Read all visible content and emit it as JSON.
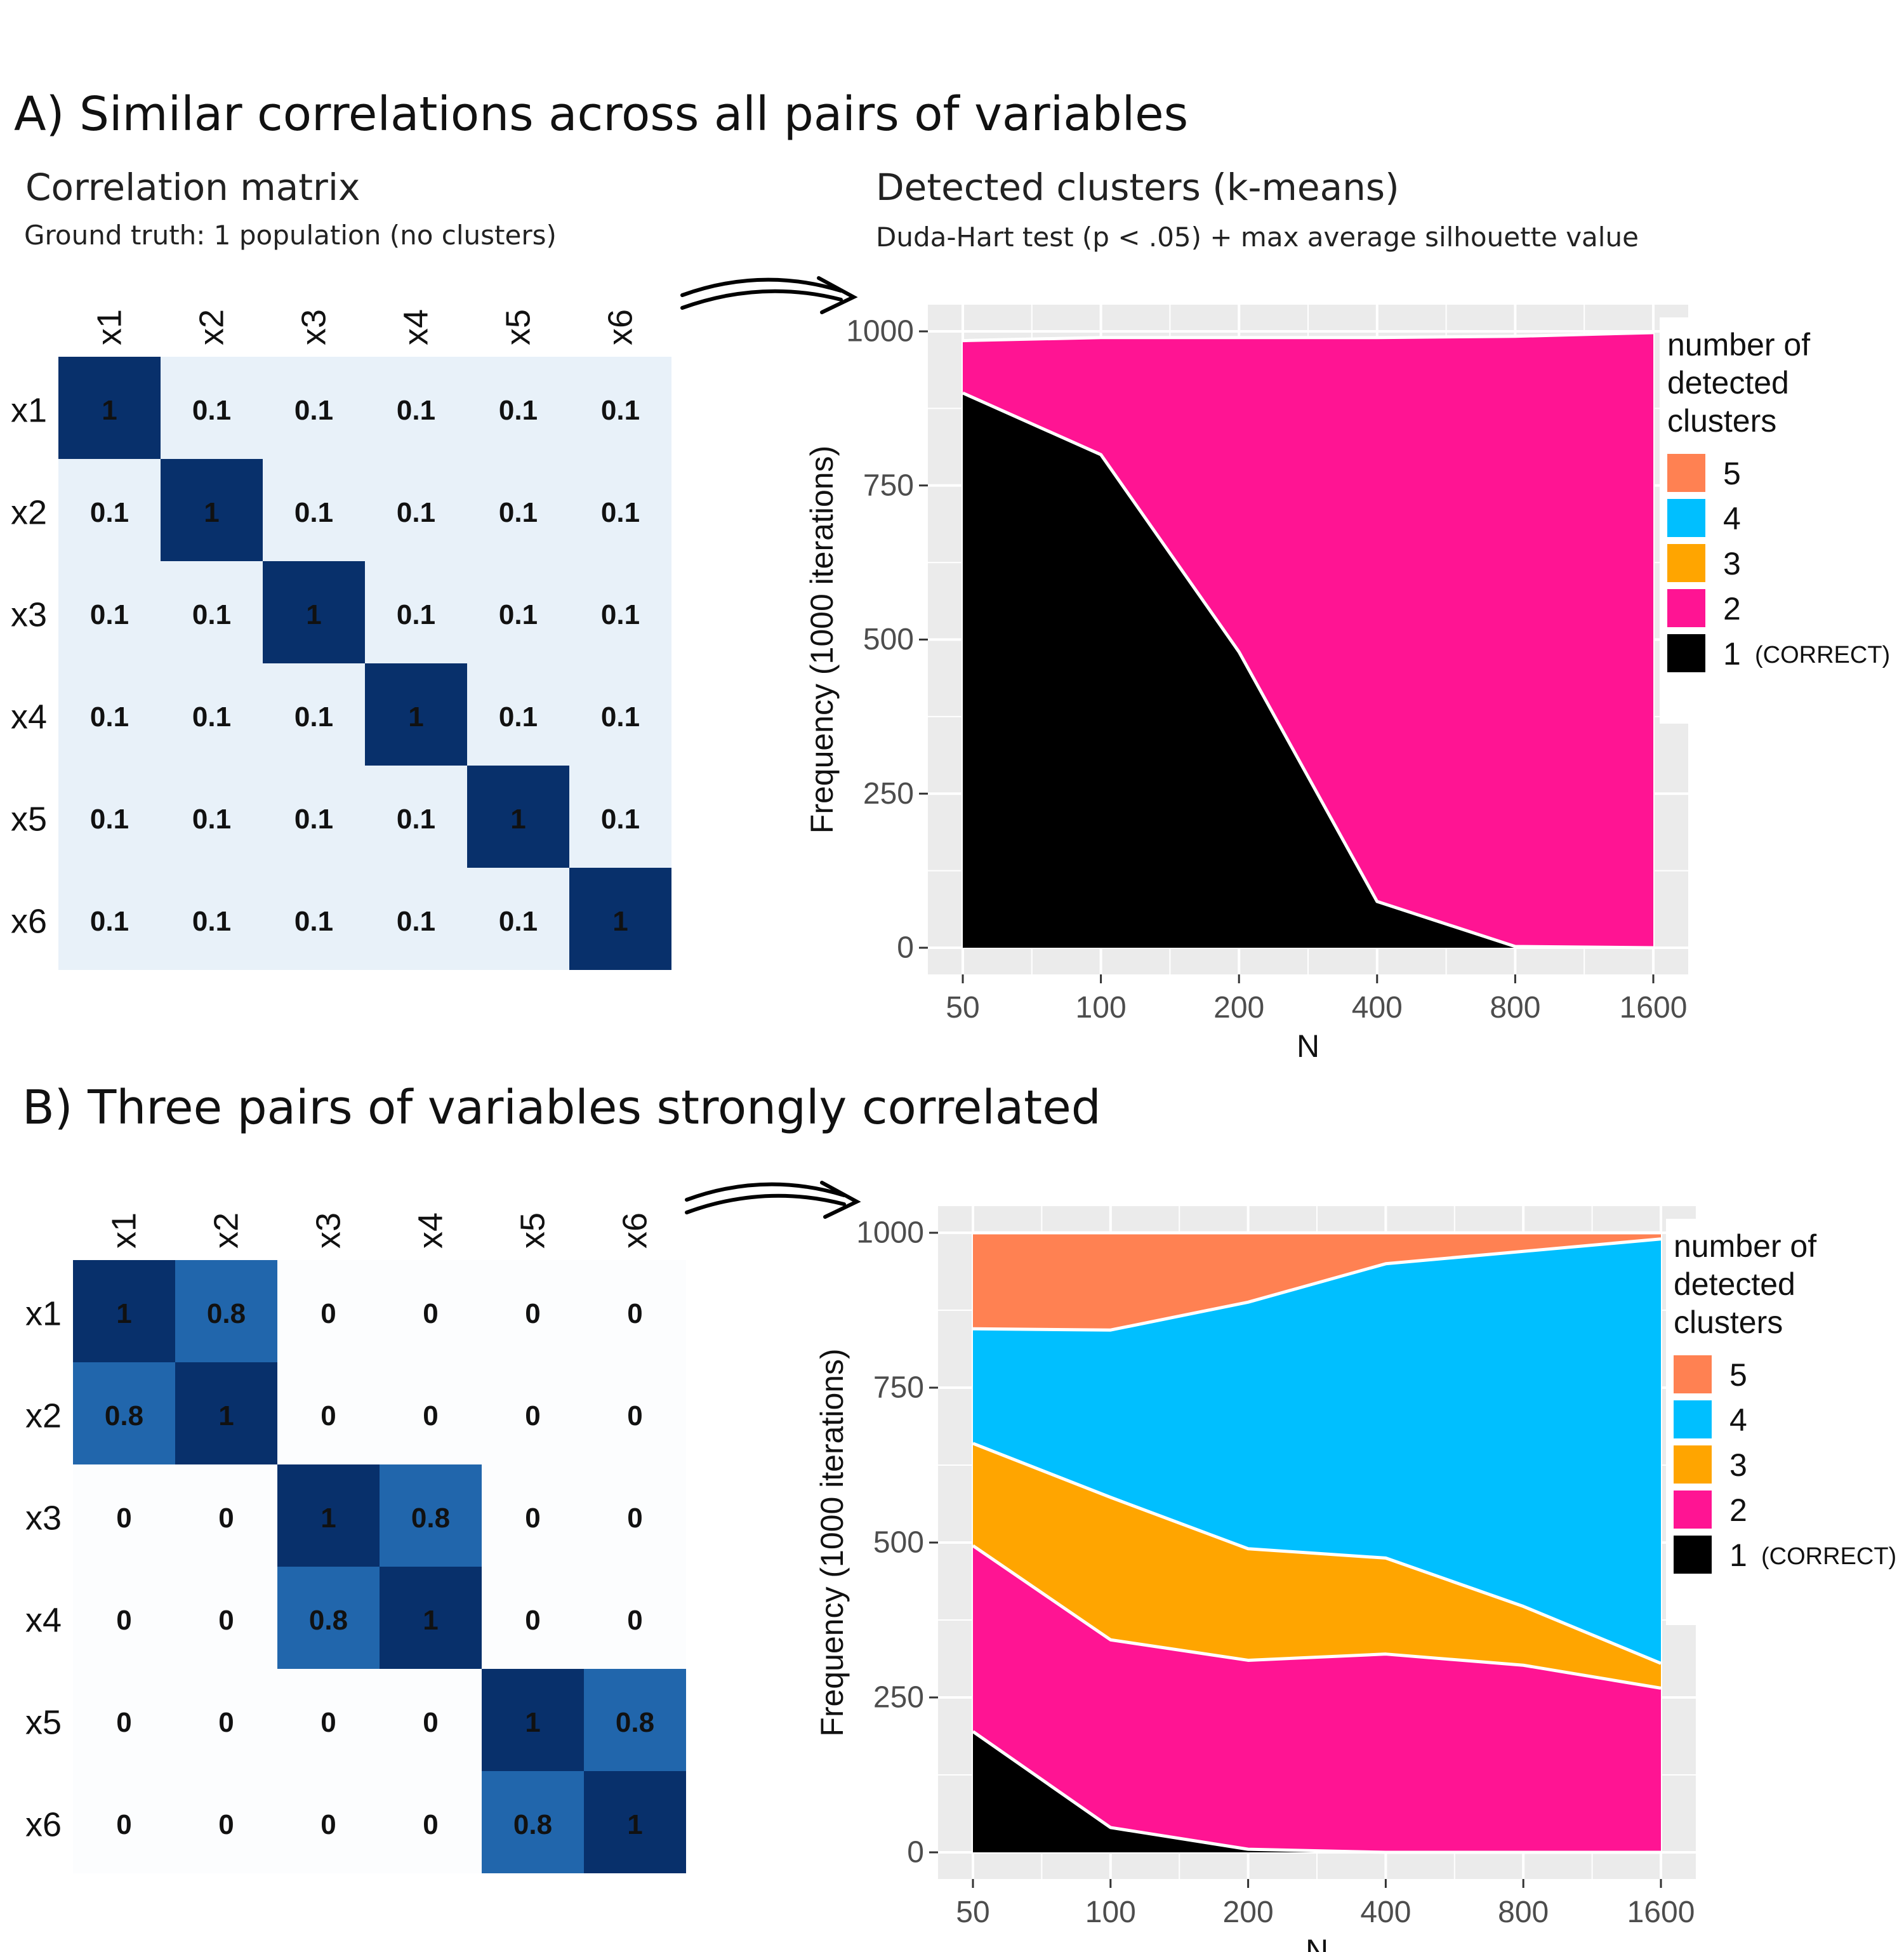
{
  "panel_a": {
    "title": "A) Similar correlations across  all  pairs of variables",
    "matrix_title": "Correlation matrix",
    "matrix_note": "Ground truth: 1 population (no clusters)",
    "plot_title": "Detected clusters (k-means)",
    "plot_note": "Duda-Hart test (p < .05) + max average silhouette value"
  },
  "panel_b": {
    "title": "B) Three pairs of variables strongly correlated"
  },
  "colors": {
    "k5": "#FF8152",
    "k4": "#00BFFF",
    "k3": "#FFA500",
    "k2": "#FF1493",
    "k1": "#000000",
    "panel_bg": "#EBEBEB",
    "matrix_low": "#E8F1F9",
    "matrix_mid": "#2166AC",
    "matrix_high": "#08306B"
  },
  "icons": [
    "double-arrow-icon-a",
    "double-arrow-icon-b"
  ],
  "chart_data": [
    {
      "type": "heatmap",
      "variables": [
        "x1",
        "x2",
        "x3",
        "x4",
        "x5",
        "x6"
      ],
      "values": [
        [
          "1",
          "0.1",
          "0.1",
          "0.1",
          "0.1",
          "0.1"
        ],
        [
          "0.1",
          "1",
          "0.1",
          "0.1",
          "0.1",
          "0.1"
        ],
        [
          "0.1",
          "0.1",
          "1",
          "0.1",
          "0.1",
          "0.1"
        ],
        [
          "0.1",
          "0.1",
          "0.1",
          "1",
          "0.1",
          "0.1"
        ],
        [
          "0.1",
          "0.1",
          "0.1",
          "0.1",
          "1",
          "0.1"
        ],
        [
          "0.1",
          "0.1",
          "0.1",
          "0.1",
          "0.1",
          "1"
        ]
      ]
    },
    {
      "type": "area",
      "stacked": true,
      "x": [
        50,
        100,
        200,
        400,
        800,
        1600
      ],
      "x_scale": "log",
      "xlabel": "N",
      "ylabel": "Frequency (1000 iterations)",
      "yticks": [
        0,
        250,
        500,
        750,
        1000
      ],
      "ylim": [
        0,
        1000
      ],
      "legend_title": "number of detected clusters",
      "legend_position": "right",
      "series": [
        {
          "name": "1",
          "note": "(CORRECT)",
          "values": [
            900,
            800,
            480,
            75,
            2,
            0
          ]
        },
        {
          "name": "2",
          "values": [
            85,
            190,
            510,
            915,
            990,
            998
          ]
        },
        {
          "name": "3",
          "values": [
            0,
            0,
            0,
            0,
            0,
            0
          ]
        },
        {
          "name": "4",
          "values": [
            0,
            0,
            0,
            0,
            0,
            0
          ]
        },
        {
          "name": "5",
          "values": [
            0,
            0,
            0,
            0,
            0,
            0
          ]
        }
      ]
    },
    {
      "type": "heatmap",
      "variables": [
        "x1",
        "x2",
        "x3",
        "x4",
        "x5",
        "x6"
      ],
      "values": [
        [
          "1",
          "0.8",
          "0",
          "0",
          "0",
          "0"
        ],
        [
          "0.8",
          "1",
          "0",
          "0",
          "0",
          "0"
        ],
        [
          "0",
          "0",
          "1",
          "0.8",
          "0",
          "0"
        ],
        [
          "0",
          "0",
          "0.8",
          "1",
          "0",
          "0"
        ],
        [
          "0",
          "0",
          "0",
          "0",
          "1",
          "0.8"
        ],
        [
          "0",
          "0",
          "0",
          "0",
          "0.8",
          "1"
        ]
      ]
    },
    {
      "type": "area",
      "stacked": true,
      "x": [
        50,
        100,
        200,
        400,
        800,
        1600
      ],
      "x_scale": "log",
      "xlabel": "N",
      "ylabel": "Frequency (1000 iterations)",
      "yticks": [
        0,
        250,
        500,
        750,
        1000
      ],
      "ylim": [
        0,
        1000
      ],
      "legend_title": "number of detected clusters",
      "legend_position": "right",
      "series": [
        {
          "name": "1",
          "note": "(CORRECT)",
          "values": [
            195,
            40,
            5,
            0,
            0,
            0
          ]
        },
        {
          "name": "2",
          "values": [
            300,
            303,
            305,
            320,
            302,
            265
          ]
        },
        {
          "name": "3",
          "values": [
            165,
            230,
            180,
            155,
            95,
            40
          ]
        },
        {
          "name": "4",
          "values": [
            185,
            270,
            398,
            475,
            573,
            685
          ]
        },
        {
          "name": "5",
          "values": [
            155,
            157,
            112,
            50,
            30,
            10
          ]
        }
      ]
    }
  ]
}
